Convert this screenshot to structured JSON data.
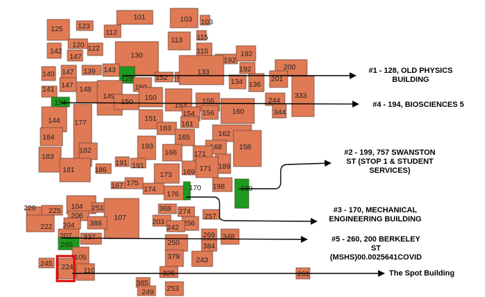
{
  "buildings": [
    {
      "label": "101",
      "color": "#e07a55"
    },
    {
      "label": "103",
      "color": "#e07a55"
    },
    {
      "label": "103",
      "color": "#e07a55"
    },
    {
      "label": "125",
      "color": "#e07a55"
    },
    {
      "label": "123",
      "color": "#e07a55"
    },
    {
      "label": "112",
      "color": "#e07a55"
    },
    {
      "label": "115",
      "color": "#e07a55"
    },
    {
      "label": "113",
      "color": "#e07a55"
    },
    {
      "label": "120",
      "color": "#e07a55"
    },
    {
      "label": "142",
      "color": "#e07a55"
    },
    {
      "label": "147",
      "color": "#e07a55"
    },
    {
      "label": "122",
      "color": "#e07a55"
    },
    {
      "label": "130",
      "color": "#e07a55"
    },
    {
      "label": "115",
      "color": "#e07a55"
    },
    {
      "label": "192",
      "color": "#e07a55"
    },
    {
      "label": "192",
      "color": "#e07a55"
    },
    {
      "label": "192",
      "color": "#e07a55"
    },
    {
      "label": "200",
      "color": "#e07a55"
    },
    {
      "label": "140",
      "color": "#e07a55"
    },
    {
      "label": "147",
      "color": "#e07a55"
    },
    {
      "label": "139",
      "color": "#e07a55"
    },
    {
      "label": "143",
      "color": "#e07a55"
    },
    {
      "label": "128",
      "color": "#1e9a1e"
    },
    {
      "label": "152",
      "color": "#e07a55"
    },
    {
      "label": "152",
      "color": "#e07a55"
    },
    {
      "label": "133",
      "color": "#e07a55"
    },
    {
      "label": "134",
      "color": "#e07a55"
    },
    {
      "label": "136",
      "color": "#e07a55"
    },
    {
      "label": "201",
      "color": "#e07a55"
    },
    {
      "label": "141",
      "color": "#e07a55"
    },
    {
      "label": "147",
      "color": "#e07a55"
    },
    {
      "label": "148",
      "color": "#e07a55"
    },
    {
      "label": "149",
      "color": "#e07a55"
    },
    {
      "label": "150",
      "color": "#e07a55"
    },
    {
      "label": "333",
      "color": "#e07a55"
    },
    {
      "label": "194",
      "color": "#1e9a1e"
    },
    {
      "label": "150",
      "color": "#e07a55"
    },
    {
      "label": "150",
      "color": "#e07a55"
    },
    {
      "label": "153",
      "color": "#e07a55"
    },
    {
      "label": "155",
      "color": "#e07a55"
    },
    {
      "label": "160",
      "color": "#e07a55"
    },
    {
      "label": "244",
      "color": "#e07a55"
    },
    {
      "label": "154",
      "color": "#e07a55"
    },
    {
      "label": "156",
      "color": "#e07a55"
    },
    {
      "label": "344",
      "color": "#e07a55"
    },
    {
      "label": "144",
      "color": "#e07a55"
    },
    {
      "label": "177",
      "color": "#e07a55"
    },
    {
      "label": "151",
      "color": "#e07a55"
    },
    {
      "label": "161",
      "color": "#e07a55"
    },
    {
      "label": "163",
      "color": "#e07a55"
    },
    {
      "label": "162",
      "color": "#e07a55"
    },
    {
      "label": "184",
      "color": "#e07a55"
    },
    {
      "label": "165",
      "color": "#e07a55"
    },
    {
      "label": "193",
      "color": "#e07a55"
    },
    {
      "label": "168",
      "color": "#e07a55"
    },
    {
      "label": "158",
      "color": "#e07a55"
    },
    {
      "label": "182",
      "color": "#e07a55"
    },
    {
      "label": "166",
      "color": "#e07a55"
    },
    {
      "label": "171",
      "color": "#e07a55"
    },
    {
      "label": "183",
      "color": "#e07a55"
    },
    {
      "label": "191",
      "color": "#e07a55"
    },
    {
      "label": "191",
      "color": "#e07a55"
    },
    {
      "label": "189",
      "color": "#e07a55"
    },
    {
      "label": "181",
      "color": "#e07a55"
    },
    {
      "label": "186",
      "color": "#e07a55"
    },
    {
      "label": "173",
      "color": "#e07a55"
    },
    {
      "label": "169",
      "color": "#e07a55"
    },
    {
      "label": "171",
      "color": "#e07a55"
    },
    {
      "label": "167",
      "color": "#e07a55"
    },
    {
      "label": "175",
      "color": "#e07a55"
    },
    {
      "label": "198",
      "color": "#e07a55"
    },
    {
      "label": "199",
      "color": "#1e9a1e"
    },
    {
      "label": "174",
      "color": "#e07a55"
    },
    {
      "label": "176",
      "color": "#e07a55"
    },
    {
      "label": "170",
      "color": "#1e9a1e"
    },
    {
      "label": "220",
      "color": "#e07a55"
    },
    {
      "label": "225",
      "color": "#e07a55"
    },
    {
      "label": "104",
      "color": "#e07a55"
    },
    {
      "label": "251",
      "color": "#e07a55"
    },
    {
      "label": "368",
      "color": "#e07a55"
    },
    {
      "label": "274",
      "color": "#e07a55"
    },
    {
      "label": "206",
      "color": "#e07a55"
    },
    {
      "label": "107",
      "color": "#e07a55"
    },
    {
      "label": "257",
      "color": "#e07a55"
    },
    {
      "label": "222",
      "color": "#e07a55"
    },
    {
      "label": "204",
      "color": "#e07a55"
    },
    {
      "label": "388",
      "color": "#e07a55"
    },
    {
      "label": "203",
      "color": "#e07a55"
    },
    {
      "label": "256",
      "color": "#e07a55"
    },
    {
      "label": "242",
      "color": "#e07a55"
    },
    {
      "label": "207",
      "color": "#e07a55"
    },
    {
      "label": "337",
      "color": "#e07a55"
    },
    {
      "label": "269",
      "color": "#e07a55"
    },
    {
      "label": "348",
      "color": "#e07a55"
    },
    {
      "label": "260",
      "color": "#1e9a1e"
    },
    {
      "label": "250",
      "color": "#e07a55"
    },
    {
      "label": "384",
      "color": "#e07a55"
    },
    {
      "label": "243",
      "color": "#e07a55"
    },
    {
      "label": "105",
      "color": "#e07a55"
    },
    {
      "label": "379",
      "color": "#e07a55"
    },
    {
      "label": "245",
      "color": "#e07a55"
    },
    {
      "label": "224",
      "color": "#e07a55"
    },
    {
      "label": "110",
      "color": "#e07a55"
    },
    {
      "label": "326",
      "color": "#e07a55"
    },
    {
      "label": "261",
      "color": "#e07a55"
    },
    {
      "label": "385",
      "color": "#e07a55"
    },
    {
      "label": "253",
      "color": "#e07a55"
    },
    {
      "label": "249",
      "color": "#e07a55"
    },
    {
      "label": "252",
      "color": "#e07a55"
    }
  ],
  "annotations": [
    {
      "line1": "#1 - 128, OLD PHYSICS",
      "line2": "BUILDING",
      "line3": ""
    },
    {
      "line1": "#4 - 194, BIOSCIENCES 5",
      "line2": "",
      "line3": ""
    },
    {
      "line1": "#2 - 199, 757 SWANSTON",
      "line2": "ST (STOP 1 & STUDENT",
      "line3": "SERVICES)"
    },
    {
      "line1": "#3 - 170, MECHANICAL",
      "line2": "ENGINEERING BUILDING",
      "line3": ""
    },
    {
      "line1": "#5 - 260, 200 BERKELEY",
      "line2": "ST",
      "line3": "(MSHS)00.0025641COVID"
    },
    {
      "line1": "The Spot Building",
      "line2": "",
      "line3": ""
    }
  ],
  "highlight_color": "#e00000"
}
